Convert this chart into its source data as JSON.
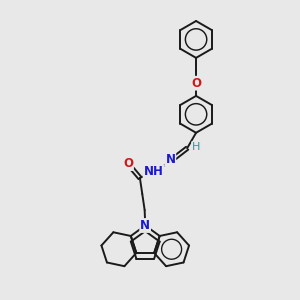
{
  "bg_color": "#e8e8e8",
  "bond_color": "#1a1a1a",
  "bond_width": 1.4,
  "N_color": "#1a1acc",
  "O_color": "#cc1a1a",
  "H_color": "#2a9a9a",
  "figsize": [
    3.0,
    3.0
  ],
  "dpi": 100,
  "xlim": [
    0,
    10
  ],
  "ylim": [
    0,
    10
  ]
}
